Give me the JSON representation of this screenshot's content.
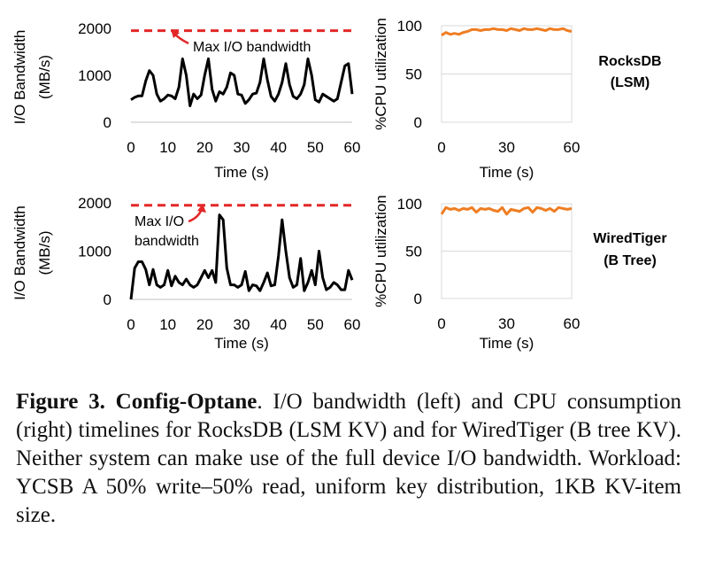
{
  "colors": {
    "io_line": "#000000",
    "max_line": "#e32727",
    "cpu_line": "#ef7d22",
    "grid": "#d9d9d9"
  },
  "chart_data": [
    {
      "id": "rocks_io",
      "type": "line",
      "ylabel_line1": "I/O Bandwidth",
      "ylabel_line2": "(MB/s)",
      "xlabel": "Time (s)",
      "xlim": [
        0,
        60
      ],
      "ylim": [
        0,
        2000
      ],
      "xticks": [
        "0",
        "10",
        "20",
        "30",
        "40",
        "50",
        "60"
      ],
      "yticks": [
        "0",
        "1000",
        "2000"
      ],
      "max_bandwidth": 1950,
      "annotation": [
        "Max I/O bandwidth"
      ],
      "x": [
        0,
        1,
        2,
        3,
        4,
        5,
        6,
        7,
        8,
        9,
        10,
        11,
        12,
        13,
        14,
        15,
        16,
        17,
        18,
        19,
        20,
        21,
        22,
        23,
        24,
        25,
        26,
        27,
        28,
        29,
        30,
        31,
        32,
        33,
        34,
        35,
        36,
        37,
        38,
        39,
        40,
        41,
        42,
        43,
        44,
        45,
        46,
        47,
        48,
        49,
        50,
        51,
        52,
        53,
        54,
        55,
        56,
        57,
        58,
        59,
        60
      ],
      "values": [
        480,
        530,
        560,
        560,
        880,
        1100,
        1000,
        600,
        450,
        500,
        580,
        560,
        500,
        750,
        1350,
        1000,
        350,
        600,
        500,
        580,
        1000,
        1350,
        700,
        450,
        650,
        600,
        750,
        1050,
        1000,
        600,
        580,
        400,
        480,
        600,
        620,
        850,
        1350,
        900,
        550,
        450,
        600,
        850,
        1250,
        800,
        550,
        500,
        600,
        800,
        1350,
        1000,
        480,
        430,
        600,
        550,
        500,
        450,
        500,
        850,
        1200,
        1250,
        600
      ],
      "series_name": "RocksDB I/O"
    },
    {
      "id": "rocks_cpu",
      "type": "line",
      "ylabel": "%CPU utilization",
      "xlabel": "Time (s)",
      "xlim": [
        0,
        60
      ],
      "ylim": [
        0,
        100
      ],
      "xticks": [
        "0",
        "30",
        "60"
      ],
      "yticks": [
        "0",
        "50",
        "100"
      ],
      "grid": true,
      "x": [
        0,
        2,
        4,
        6,
        8,
        10,
        12,
        14,
        16,
        18,
        20,
        22,
        24,
        26,
        28,
        30,
        32,
        34,
        36,
        38,
        40,
        42,
        44,
        46,
        48,
        50,
        52,
        54,
        56,
        58,
        60
      ],
      "values": [
        90,
        93,
        91,
        92,
        91,
        93,
        94,
        96,
        96,
        95,
        96,
        96,
        97,
        96,
        96,
        95,
        97,
        96,
        95,
        97,
        96,
        96,
        97,
        96,
        95,
        97,
        96,
        96,
        97,
        95,
        94
      ],
      "series_name": "RocksDB CPU"
    },
    {
      "id": "wired_io",
      "type": "line",
      "ylabel_line1": "I/O Bandwidth",
      "ylabel_line2": "(MB/s)",
      "xlabel": "Time (s)",
      "xlim": [
        0,
        60
      ],
      "ylim": [
        0,
        2000
      ],
      "xticks": [
        "0",
        "10",
        "20",
        "30",
        "40",
        "50",
        "60"
      ],
      "yticks": [
        "0",
        "1000",
        "2000"
      ],
      "max_bandwidth": 1950,
      "annotation": [
        "Max I/O",
        "bandwidth"
      ],
      "x": [
        0,
        1,
        2,
        3,
        4,
        5,
        6,
        7,
        8,
        9,
        10,
        11,
        12,
        13,
        14,
        15,
        16,
        17,
        18,
        19,
        20,
        21,
        22,
        23,
        24,
        25,
        26,
        27,
        28,
        29,
        30,
        31,
        32,
        33,
        34,
        35,
        36,
        37,
        38,
        39,
        40,
        41,
        42,
        43,
        44,
        45,
        46,
        47,
        48,
        49,
        50,
        51,
        52,
        53,
        54,
        55,
        56,
        57,
        58,
        59,
        60
      ],
      "values": [
        0,
        650,
        780,
        780,
        620,
        300,
        620,
        300,
        250,
        300,
        600,
        280,
        480,
        350,
        300,
        420,
        300,
        250,
        300,
        450,
        600,
        450,
        600,
        350,
        1750,
        1650,
        650,
        300,
        300,
        250,
        300,
        580,
        180,
        300,
        280,
        180,
        350,
        550,
        280,
        300,
        900,
        1650,
        1000,
        450,
        250,
        300,
        850,
        180,
        350,
        600,
        300,
        1000,
        450,
        200,
        250,
        350,
        300,
        200,
        200,
        600,
        400
      ],
      "series_name": "WiredTiger I/O"
    },
    {
      "id": "wired_cpu",
      "type": "line",
      "ylabel": "%CPU utilization",
      "xlabel": "Time (s)",
      "xlim": [
        0,
        60
      ],
      "ylim": [
        0,
        100
      ],
      "xticks": [
        "0",
        "30",
        "60"
      ],
      "yticks": [
        "0",
        "50",
        "100"
      ],
      "grid": true,
      "x": [
        0,
        2,
        4,
        6,
        8,
        10,
        12,
        14,
        16,
        18,
        20,
        22,
        24,
        26,
        28,
        30,
        32,
        34,
        36,
        38,
        40,
        42,
        44,
        46,
        48,
        50,
        52,
        54,
        56,
        58,
        60
      ],
      "values": [
        89,
        96,
        94,
        95,
        93,
        95,
        94,
        96,
        91,
        95,
        94,
        95,
        93,
        92,
        96,
        89,
        94,
        93,
        92,
        95,
        96,
        91,
        96,
        95,
        93,
        95,
        92,
        96,
        95,
        94,
        95
      ],
      "series_name": "WiredTiger CPU"
    }
  ],
  "labels": {
    "rocks_name": "RocksDB",
    "rocks_type": "(LSM)",
    "wired_name": "WiredTiger",
    "wired_type": "(B Tree)"
  },
  "caption": {
    "lead": "Figure 3. Config-Optane",
    "body": ". I/O bandwidth (left) and CPU consumption (right) timelines for RocksDB (LSM KV) and for WiredTiger (B tree KV). Neither system can make use of the full device I/O bandwidth. Workload: YCSB A 50% write–50% read, uniform key distribution, 1KB KV-item size."
  }
}
